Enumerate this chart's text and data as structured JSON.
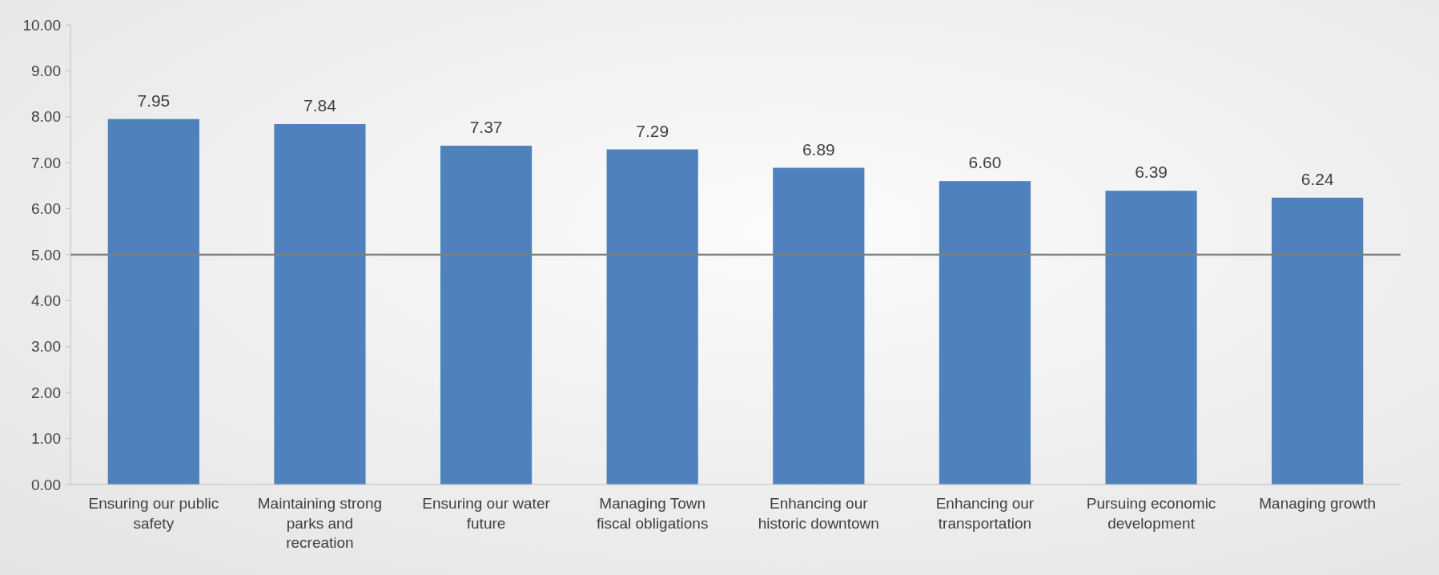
{
  "chart_data": {
    "type": "bar",
    "categories": [
      "Ensuring our public safety",
      "Maintaining strong parks and recreation",
      "Ensuring our water future",
      "Managing Town fiscal obligations",
      "Enhancing our historic downtown",
      "Enhancing our transportation",
      "Pursuing economic development",
      "Managing growth"
    ],
    "values": [
      7.95,
      7.84,
      7.37,
      7.29,
      6.89,
      6.6,
      6.39,
      6.24
    ],
    "value_labels": [
      "7.95",
      "7.84",
      "7.37",
      "7.29",
      "6.89",
      "6.60",
      "6.39",
      "6.24"
    ],
    "color": "#4f81bd",
    "ylim": [
      0,
      10
    ],
    "yticks": [
      {
        "value": 0,
        "label": "0.00"
      },
      {
        "value": 1,
        "label": "1.00"
      },
      {
        "value": 2,
        "label": "2.00"
      },
      {
        "value": 3,
        "label": "3.00"
      },
      {
        "value": 4,
        "label": "4.00"
      },
      {
        "value": 5,
        "label": "5.00"
      },
      {
        "value": 6,
        "label": "6.00"
      },
      {
        "value": 7,
        "label": "7.00"
      },
      {
        "value": 8,
        "label": "8.00"
      },
      {
        "value": 9,
        "label": "9.00"
      },
      {
        "value": 10,
        "label": "10.00"
      }
    ],
    "ref_lines": [
      {
        "axis": "y",
        "value": 5,
        "color": "#7f7f7f"
      }
    ],
    "grid": false
  }
}
